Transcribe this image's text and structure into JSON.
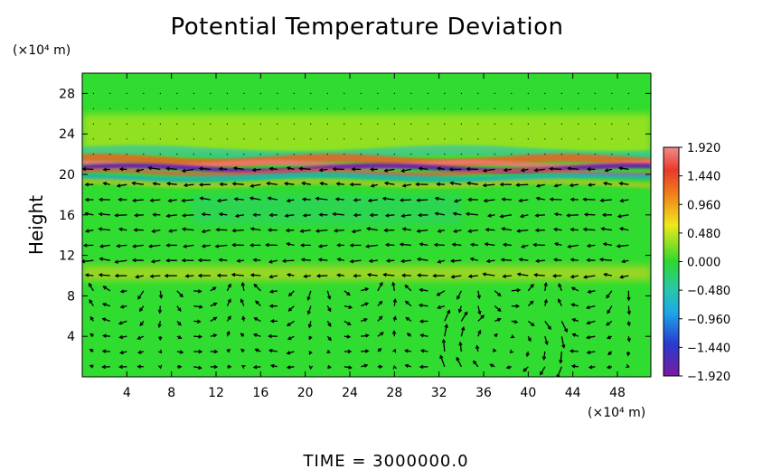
{
  "chart_data": {
    "type": "heatmap",
    "title": "Potential Temperature Deviation",
    "xlabel": "",
    "x_unit": "(×10⁴ m)",
    "ylabel": "Height",
    "y_unit": "(×10⁴ m)",
    "xlim": [
      0,
      51
    ],
    "ylim": [
      0,
      30
    ],
    "x_ticks": [
      "4",
      "8",
      "12",
      "16",
      "20",
      "24",
      "28",
      "32",
      "36",
      "40",
      "44",
      "48"
    ],
    "y_ticks": [
      "4",
      "8",
      "12",
      "16",
      "20",
      "24",
      "28"
    ],
    "x_tick_values": [
      4,
      8,
      12,
      16,
      20,
      24,
      28,
      32,
      36,
      40,
      44,
      48
    ],
    "y_tick_values": [
      4,
      8,
      12,
      16,
      20,
      24,
      28
    ],
    "colorbar": {
      "ticks": [
        "1.920",
        "1.440",
        "0.960",
        "0.480",
        "0.000",
        "−0.480",
        "−0.960",
        "−1.440",
        "−1.920"
      ],
      "tick_values": [
        1.92,
        1.44,
        0.96,
        0.48,
        0.0,
        -0.48,
        -0.96,
        -1.44,
        -1.92
      ],
      "range": [
        -1.92,
        1.92
      ]
    },
    "background_value": 0.25,
    "bands": [
      {
        "y": 21.0,
        "value": 1.7
      },
      {
        "y": 20.4,
        "value": -1.8
      },
      {
        "y": 19.5,
        "value": 0.9
      },
      {
        "y": 22.0,
        "value": -0.5
      },
      {
        "y": 16.0,
        "value": -0.3
      },
      {
        "y": 10.0,
        "value": 0.7
      }
    ],
    "vector_field": "wind arrows overlaid on field",
    "annotation": "TIME  =  3000000.0",
    "grid": false,
    "legend": "colorbar-right"
  },
  "colors": {
    "field_green": "#2fdc2f",
    "colorbar_gradient": [
      "#f08080",
      "#e83030",
      "#f0a020",
      "#f0e020",
      "#30d830",
      "#30c0a0",
      "#20b0e0",
      "#3040d0",
      "#8020a0"
    ]
  }
}
